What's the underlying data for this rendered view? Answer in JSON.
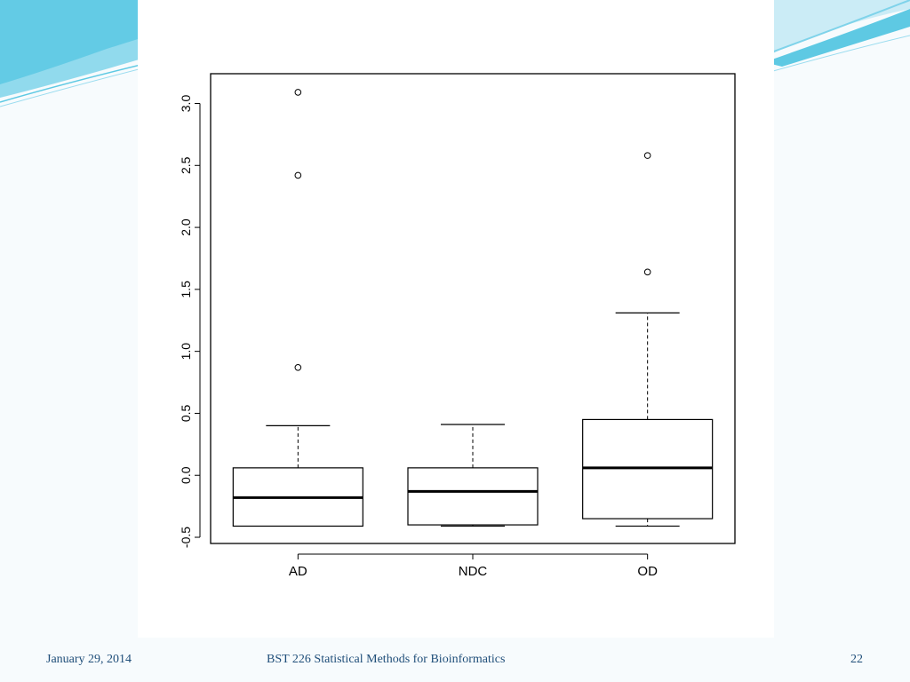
{
  "slide": {
    "footer": {
      "date": "January 29, 2014",
      "course": "BST 226 Statistical Methods for Bioinformatics",
      "page": "22"
    },
    "theme_colors": {
      "accent": "#1f4e79",
      "wave": "#5ec9e3",
      "background": "#f7fbfd"
    }
  },
  "chart_data": {
    "type": "box",
    "title": "",
    "xlabel": "",
    "ylabel": "",
    "ylim": [
      -0.55,
      3.24
    ],
    "yticks": [
      -0.5,
      0.0,
      0.5,
      1.0,
      1.5,
      2.0,
      2.5,
      3.0
    ],
    "ytick_labels": [
      "-0.5",
      "0.0",
      "0.5",
      "1.0",
      "1.5",
      "2.0",
      "2.5",
      "3.0"
    ],
    "grid": false,
    "categories": [
      "AD",
      "NDC",
      "OD"
    ],
    "boxes": [
      {
        "label": "AD",
        "whisker_low": -0.41,
        "q1": -0.41,
        "median": -0.18,
        "q3": 0.06,
        "whisker_high": 0.4,
        "outliers": [
          0.87,
          2.42,
          3.09
        ]
      },
      {
        "label": "NDC",
        "whisker_low": -0.41,
        "q1": -0.4,
        "median": -0.13,
        "q3": 0.06,
        "whisker_high": 0.41,
        "outliers": []
      },
      {
        "label": "OD",
        "whisker_low": -0.41,
        "q1": -0.35,
        "median": 0.06,
        "q3": 0.45,
        "whisker_high": 1.31,
        "outliers": [
          1.64,
          2.58
        ]
      }
    ]
  }
}
